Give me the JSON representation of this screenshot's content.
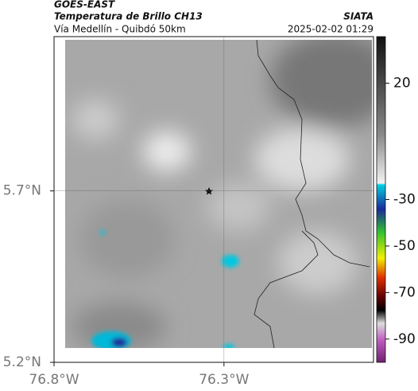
{
  "header": {
    "source": "GOES-EAST",
    "title": "Temperatura de Brillo CH13",
    "subtitle": "Vía Medellín - Quibdó 50km",
    "credit": "SIATA",
    "timestamp": "2025-02-02 01:29"
  },
  "map": {
    "xlim": [
      -76.8,
      -75.86
    ],
    "ylim": [
      5.2,
      6.15
    ],
    "xticks": [
      {
        "value": -76.8,
        "label": "76.8°W"
      },
      {
        "value": -76.3,
        "label": "76.3°W"
      }
    ],
    "yticks": [
      {
        "value": 5.7,
        "label": "5.7°N"
      },
      {
        "value": 5.2,
        "label": "5.2°N"
      }
    ]
  },
  "colorbar": {
    "lim": [
      -100,
      40
    ],
    "ticks": [
      20,
      -30,
      -50,
      -70,
      -90
    ]
  }
}
